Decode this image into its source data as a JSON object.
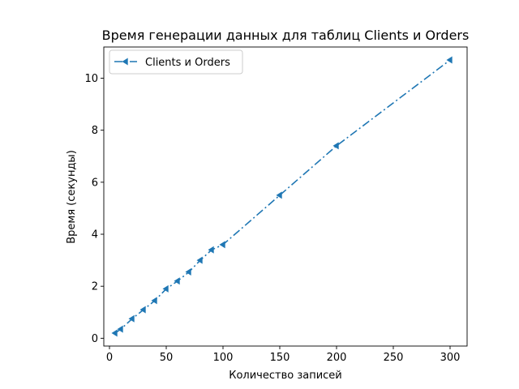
{
  "chart_data": {
    "type": "line",
    "title": "Время генерации данных для таблиц Clients и Orders",
    "xlabel": "Количество записей",
    "ylabel": "Время (секунды)",
    "xlim": [
      -5,
      315
    ],
    "ylim": [
      -0.3,
      11.2
    ],
    "xticks": [
      0,
      50,
      100,
      150,
      200,
      250,
      300
    ],
    "yticks": [
      0,
      2,
      4,
      6,
      8,
      10
    ],
    "grid": false,
    "legend_position": "top-left",
    "series": [
      {
        "name": "Clients и Orders",
        "color": "#1f77b4",
        "line_style": "dash-dot",
        "marker": "triangle-left",
        "x": [
          5,
          10,
          20,
          30,
          40,
          50,
          60,
          70,
          80,
          90,
          100,
          150,
          200,
          300
        ],
        "y": [
          0.2,
          0.35,
          0.75,
          1.1,
          1.45,
          1.9,
          2.2,
          2.55,
          3.0,
          3.4,
          3.6,
          5.5,
          7.4,
          10.7
        ]
      }
    ]
  }
}
